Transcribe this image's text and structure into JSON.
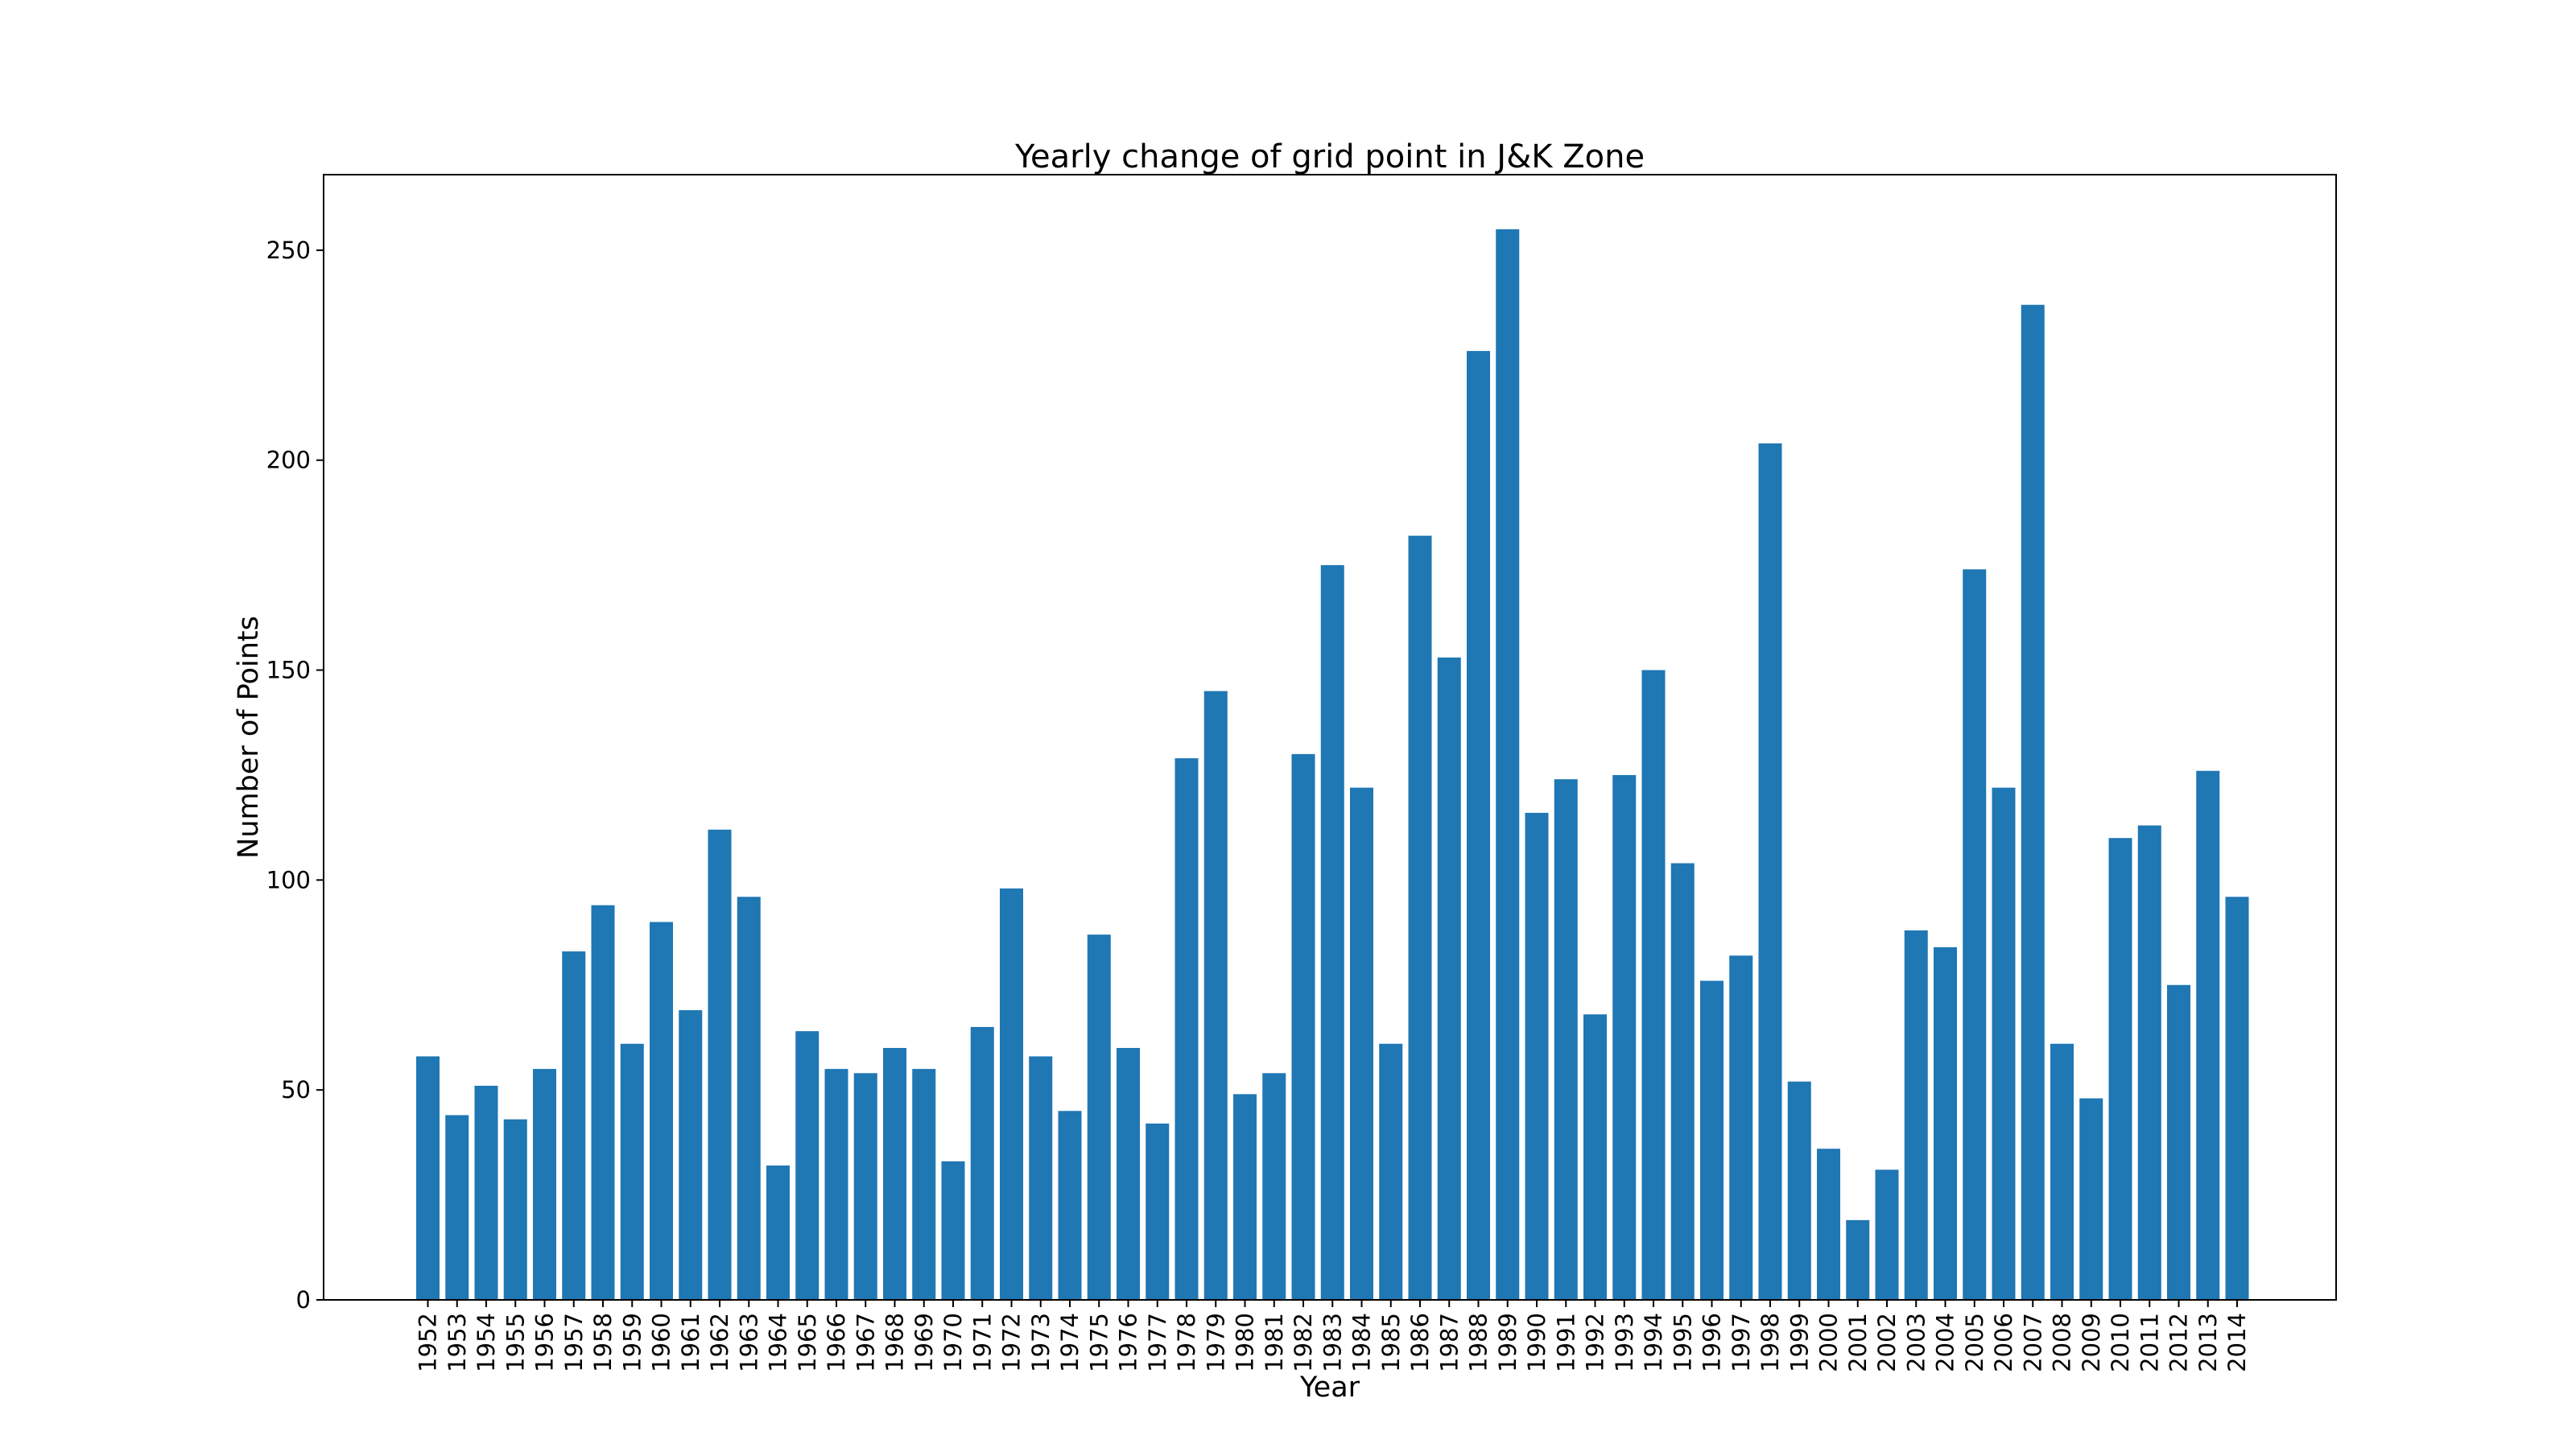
{
  "chart_data": {
    "type": "bar",
    "title": "Yearly change of grid point in J&K Zone",
    "xlabel": "Year",
    "ylabel": "Number of Points",
    "ylim": [
      0,
      268
    ],
    "yticks": [
      0,
      50,
      100,
      150,
      200,
      250
    ],
    "grid": false,
    "bar_color": "#1f77b4",
    "categories": [
      "1952",
      "1953",
      "1954",
      "1955",
      "1956",
      "1957",
      "1958",
      "1959",
      "1960",
      "1961",
      "1962",
      "1963",
      "1964",
      "1965",
      "1966",
      "1967",
      "1968",
      "1969",
      "1970",
      "1971",
      "1972",
      "1973",
      "1974",
      "1975",
      "1976",
      "1977",
      "1978",
      "1979",
      "1980",
      "1981",
      "1982",
      "1983",
      "1984",
      "1985",
      "1986",
      "1987",
      "1988",
      "1989",
      "1990",
      "1991",
      "1992",
      "1993",
      "1994",
      "1995",
      "1996",
      "1997",
      "1998",
      "1999",
      "2000",
      "2001",
      "2002",
      "2003",
      "2004",
      "2005",
      "2006",
      "2007",
      "2008",
      "2009",
      "2010",
      "2011",
      "2012",
      "2013",
      "2014"
    ],
    "values": [
      58,
      44,
      51,
      43,
      55,
      83,
      94,
      61,
      90,
      69,
      112,
      96,
      32,
      64,
      55,
      54,
      60,
      55,
      33,
      65,
      98,
      58,
      45,
      87,
      60,
      42,
      129,
      145,
      49,
      54,
      130,
      175,
      122,
      61,
      182,
      153,
      226,
      255,
      116,
      124,
      68,
      125,
      150,
      104,
      76,
      82,
      204,
      52,
      36,
      19,
      31,
      88,
      84,
      174,
      122,
      237,
      61,
      48,
      110,
      113,
      75,
      126,
      96
    ]
  }
}
